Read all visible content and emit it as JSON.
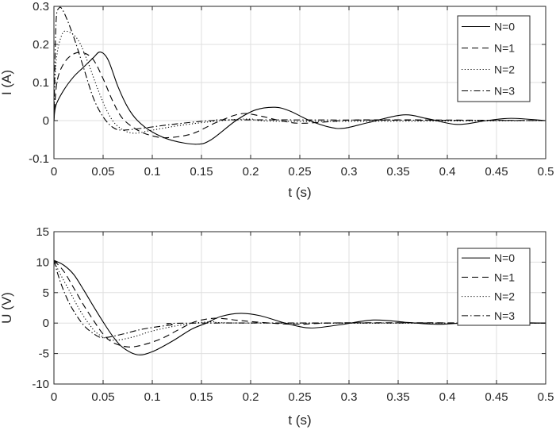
{
  "chart_data": [
    {
      "type": "line",
      "xlabel": "t (s)",
      "ylabel": "I (A)",
      "xlim": [
        0,
        0.5
      ],
      "ylim": [
        -0.1,
        0.3
      ],
      "xticks": [
        "0",
        "0.05",
        "0.1",
        "0.15",
        "0.2",
        "0.25",
        "0.3",
        "0.35",
        "0.4",
        "0.45",
        "0.5"
      ],
      "yticks": [
        "-0.1",
        "0",
        "0.1",
        "0.2",
        "0.3"
      ],
      "grid": true,
      "legend": "top-right",
      "series": [
        {
          "name": "N=0",
          "style": "solid",
          "x": [
            0,
            0.002,
            0.01,
            0.02,
            0.03,
            0.04,
            0.047,
            0.055,
            0.065,
            0.075,
            0.085,
            0.1,
            0.12,
            0.145,
            0.16,
            0.185,
            0.205,
            0.225,
            0.24,
            0.26,
            0.28,
            0.295,
            0.32,
            0.355,
            0.38,
            0.41,
            0.44,
            0.465,
            0.5
          ],
          "y": [
            0,
            0.04,
            0.08,
            0.115,
            0.14,
            0.165,
            0.18,
            0.16,
            0.09,
            0.035,
            0.0,
            -0.03,
            -0.052,
            -0.062,
            -0.05,
            0.0,
            0.028,
            0.035,
            0.025,
            0.0,
            -0.017,
            -0.02,
            -0.005,
            0.015,
            0.005,
            -0.01,
            0,
            0.006,
            0
          ]
        },
        {
          "name": "N=1",
          "style": "dashed",
          "x": [
            0,
            0.003,
            0.01,
            0.02,
            0.03,
            0.04,
            0.05,
            0.06,
            0.07,
            0.085,
            0.1,
            0.115,
            0.14,
            0.165,
            0.19,
            0.21,
            0.23,
            0.25,
            0.28,
            0.32,
            0.5
          ],
          "y": [
            0,
            0.1,
            0.15,
            0.175,
            0.178,
            0.16,
            0.11,
            0.05,
            0.005,
            -0.025,
            -0.04,
            -0.045,
            -0.035,
            -0.005,
            0.018,
            0.012,
            0,
            -0.007,
            -0.003,
            0.002,
            0
          ]
        },
        {
          "name": "N=2",
          "style": "dotted",
          "x": [
            0,
            0.002,
            0.008,
            0.015,
            0.025,
            0.035,
            0.045,
            0.055,
            0.065,
            0.08,
            0.1,
            0.13,
            0.17,
            0.2,
            0.24,
            0.5
          ],
          "y": [
            0,
            0.15,
            0.225,
            0.233,
            0.21,
            0.15,
            0.08,
            0.02,
            -0.015,
            -0.033,
            -0.025,
            -0.012,
            0,
            0.004,
            -0.002,
            0
          ]
        },
        {
          "name": "N=3",
          "style": "dashdot",
          "x": [
            0,
            0.002,
            0.005,
            0.01,
            0.02,
            0.03,
            0.04,
            0.05,
            0.06,
            0.07,
            0.09,
            0.12,
            0.16,
            0.2,
            0.5
          ],
          "y": [
            0,
            0.25,
            0.295,
            0.285,
            0.22,
            0.14,
            0.06,
            0.01,
            -0.018,
            -0.025,
            -0.02,
            -0.01,
            0,
            0.002,
            0
          ]
        }
      ]
    },
    {
      "type": "line",
      "xlabel": "t (s)",
      "ylabel": "U (V)",
      "xlim": [
        0,
        0.5
      ],
      "ylim": [
        -10,
        15
      ],
      "xticks": [
        "0",
        "0.05",
        "0.1",
        "0.15",
        "0.2",
        "0.25",
        "0.3",
        "0.35",
        "0.4",
        "0.45",
        "0.5"
      ],
      "yticks": [
        "-10",
        "-5",
        "0",
        "5",
        "10",
        "15"
      ],
      "grid": true,
      "legend": "top-right",
      "series": [
        {
          "name": "N=0",
          "style": "solid",
          "x": [
            0,
            0.01,
            0.02,
            0.03,
            0.04,
            0.05,
            0.06,
            0.07,
            0.085,
            0.1,
            0.12,
            0.14,
            0.155,
            0.17,
            0.19,
            0.21,
            0.235,
            0.26,
            0.29,
            0.325,
            0.36,
            0.39,
            0.43,
            0.5
          ],
          "y": [
            10.3,
            9.5,
            8,
            5.5,
            2.8,
            0.2,
            -2.2,
            -4,
            -5.2,
            -4.7,
            -3,
            -1,
            0,
            1.1,
            1.6,
            1.2,
            0,
            -0.8,
            -0.3,
            0.5,
            0.1,
            -0.2,
            0.1,
            0
          ]
        },
        {
          "name": "N=1",
          "style": "dashed",
          "x": [
            0,
            0.01,
            0.02,
            0.03,
            0.04,
            0.05,
            0.06,
            0.075,
            0.09,
            0.11,
            0.13,
            0.145,
            0.165,
            0.19,
            0.22,
            0.25,
            0.3,
            0.5
          ],
          "y": [
            10.3,
            8.5,
            5.8,
            3,
            0.5,
            -1.8,
            -3.2,
            -3.9,
            -3.6,
            -2.5,
            -0.8,
            0.3,
            0.8,
            0.4,
            0,
            -0.2,
            0.05,
            0
          ]
        },
        {
          "name": "N=2",
          "style": "dotted",
          "x": [
            0,
            0.005,
            0.015,
            0.025,
            0.035,
            0.045,
            0.06,
            0.08,
            0.1,
            0.13,
            0.16,
            0.2,
            0.5
          ],
          "y": [
            10.3,
            8.5,
            5.5,
            2.5,
            0,
            -1.8,
            -2.8,
            -2.3,
            -1.3,
            -0.3,
            0.2,
            0,
            0
          ]
        },
        {
          "name": "N=3",
          "style": "dashdot",
          "x": [
            0,
            0.005,
            0.012,
            0.02,
            0.03,
            0.04,
            0.05,
            0.07,
            0.09,
            0.12,
            0.15,
            0.5
          ],
          "y": [
            10.3,
            7.5,
            4.5,
            2,
            -0.3,
            -1.7,
            -2.4,
            -1.8,
            -1.0,
            -0.3,
            0,
            0
          ]
        }
      ]
    }
  ]
}
